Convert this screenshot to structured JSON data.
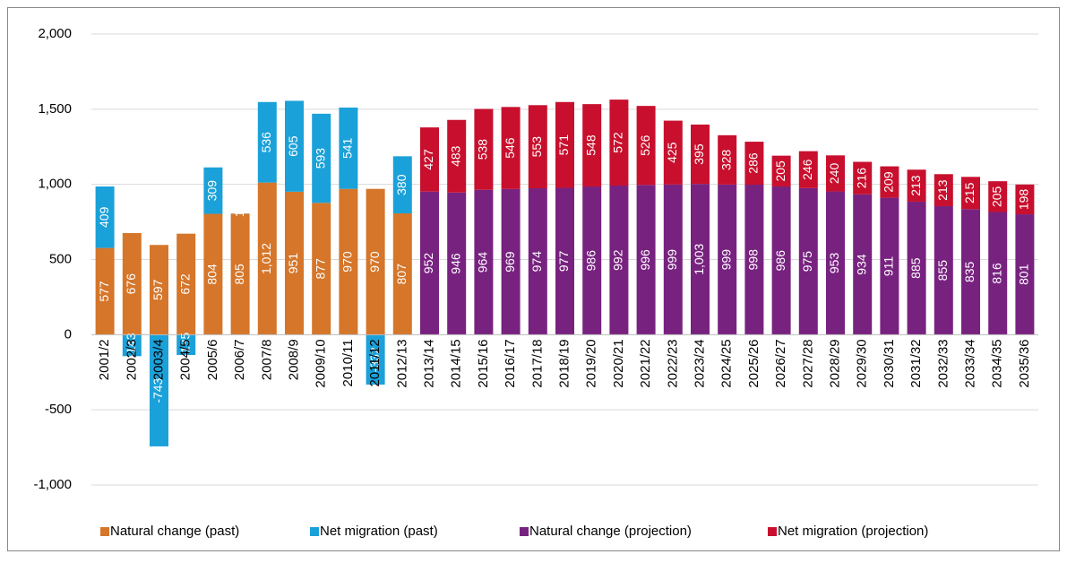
{
  "chart_data": {
    "type": "stacked_bar",
    "categories": [
      "2001/2",
      "2002/3",
      "2003/4",
      "2004/5",
      "2005/6",
      "2006/7",
      "2007/8",
      "2008/9",
      "2009/10",
      "2010/11",
      "2011/12",
      "2012/13",
      "2013/14",
      "2014/15",
      "2015/16",
      "2016/17",
      "2017/18",
      "2018/19",
      "2019/20",
      "2020/21",
      "2021/22",
      "2022/23",
      "2023/24",
      "2024/25",
      "2025/26",
      "2026/27",
      "2027/28",
      "2028/29",
      "2029/30",
      "2030/31",
      "2031/32",
      "2032/33",
      "2033/34",
      "2034/35",
      "2035/36"
    ],
    "series": [
      {
        "name": "Natural change (past)",
        "color": "#d5762a",
        "values": [
          577,
          676,
          597,
          672,
          804,
          805,
          1012,
          951,
          877,
          970,
          970,
          807,
          null,
          null,
          null,
          null,
          null,
          null,
          null,
          null,
          null,
          null,
          null,
          null,
          null,
          null,
          null,
          null,
          null,
          null,
          null,
          null,
          null,
          null,
          null
        ],
        "value_labels": [
          "577",
          "676",
          "597",
          "672",
          "804",
          "805",
          "1,012",
          "951",
          "877",
          "970",
          "970",
          "807",
          null,
          null,
          null,
          null,
          null,
          null,
          null,
          null,
          null,
          null,
          null,
          null,
          null,
          null,
          null,
          null,
          null,
          null,
          null,
          null,
          null,
          null,
          null
        ]
      },
      {
        "name": "Net migration (past)",
        "color": "#1ba1d9",
        "values": [
          409,
          -143,
          -743,
          -135,
          309,
          1,
          536,
          605,
          593,
          541,
          -332,
          380,
          null,
          null,
          null,
          null,
          null,
          null,
          null,
          null,
          null,
          null,
          null,
          null,
          null,
          null,
          null,
          null,
          null,
          null,
          null,
          null,
          null,
          null,
          null
        ]
      },
      {
        "name": "Natural change (projection)",
        "color": "#782280",
        "values": [
          null,
          null,
          null,
          null,
          null,
          null,
          null,
          null,
          null,
          null,
          null,
          null,
          952,
          946,
          964,
          969,
          974,
          977,
          986,
          992,
          996,
          999,
          1003,
          999,
          998,
          986,
          975,
          953,
          934,
          911,
          885,
          855,
          835,
          816,
          801
        ],
        "value_labels": [
          null,
          null,
          null,
          null,
          null,
          null,
          null,
          null,
          null,
          null,
          null,
          null,
          "952",
          "946",
          "964",
          "969",
          "974",
          "977",
          "986",
          "992",
          "996",
          "999",
          "1,003",
          "999",
          "998",
          "986",
          "975",
          "953",
          "934",
          "911",
          "885",
          "855",
          "835",
          "816",
          "801"
        ]
      },
      {
        "name": "Net migration (projection)",
        "color": "#c8102e",
        "values": [
          null,
          null,
          null,
          null,
          null,
          null,
          null,
          null,
          null,
          null,
          null,
          null,
          427,
          483,
          538,
          546,
          553,
          571,
          548,
          572,
          526,
          425,
          395,
          328,
          286,
          205,
          246,
          240,
          216,
          209,
          213,
          213,
          215,
          205,
          198
        ]
      }
    ],
    "ylim": [
      -1000,
      2000
    ],
    "yticks": [
      {
        "value": -1000,
        "label": "-1,000"
      },
      -500,
      0,
      500,
      {
        "value": 1000,
        "label": "1,000"
      },
      {
        "value": 1500,
        "label": "1,500"
      },
      {
        "value": 2000,
        "label": "2,000"
      }
    ],
    "grid": true,
    "legend": "bottom"
  }
}
